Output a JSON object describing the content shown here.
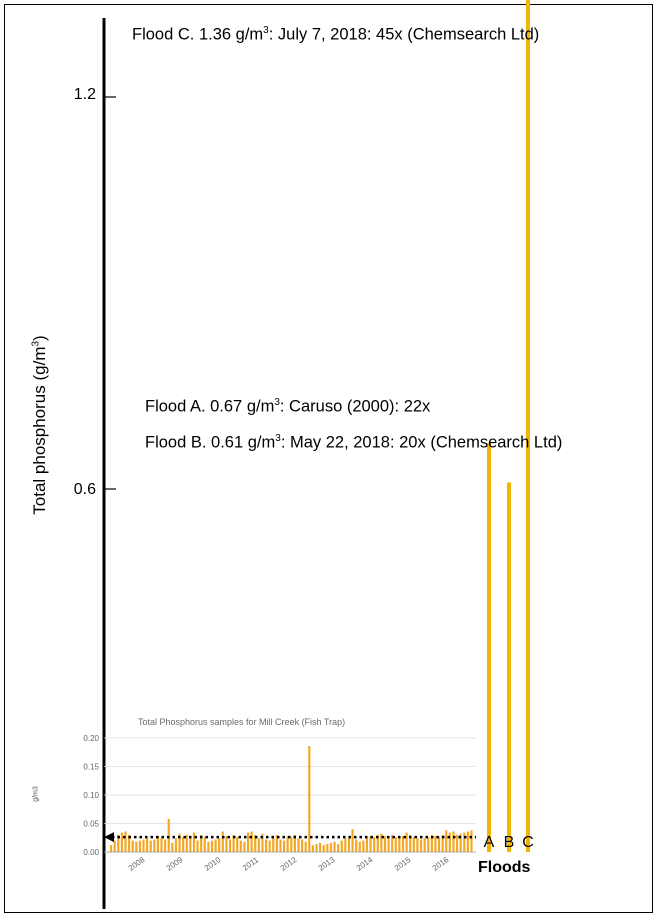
{
  "chart_data": [
    {
      "type": "bar",
      "title": "",
      "ylabel": "Total phosphorus (g/m3)",
      "ylabel_parts": {
        "text": "Total phosphorus (g/m",
        "sup": "3",
        "close": ")"
      },
      "xlabel": "Floods",
      "ylim": [
        0,
        1.36
      ],
      "yticks": [
        {
          "value": 0.6,
          "label": "0.6"
        },
        {
          "value": 1.2,
          "label": "1.2"
        }
      ],
      "categories": [
        "A",
        "B",
        "C"
      ],
      "values": [
        0.67,
        0.61,
        1.36
      ],
      "bar_color": "#F5B400",
      "annotations": [
        {
          "pre": "Flood C. 1.36 g/m",
          "sup": "3",
          "post": ": July 7, 2018: 45x (Chemsearch Ltd)"
        },
        {
          "pre": "Flood A. 0.67 g/m",
          "sup": "3",
          "post": ": Caruso (2000): 22x"
        },
        {
          "pre": "Flood B. 0.61 g/m",
          "sup": "3",
          "post": ": May 22, 2018: 20x (Chemsearch Ltd)"
        }
      ]
    },
    {
      "type": "bar",
      "title": "Total Phosphorus samples for Mill Creek (Fish Trap)",
      "ylabel": "g/m3",
      "ylim": [
        0,
        0.2
      ],
      "yticks": [
        "0.00",
        "0.05",
        "0.10",
        "0.15",
        "0.20"
      ],
      "xticks": [
        "2008",
        "2009",
        "2010",
        "2011",
        "2012",
        "2013",
        "2014",
        "2015",
        "2016"
      ],
      "bar_color": "#F5A623",
      "reference_line": 0.026,
      "values": [
        0.012,
        0.02,
        0.03,
        0.034,
        0.036,
        0.03,
        0.02,
        0.018,
        0.02,
        0.022,
        0.024,
        0.02,
        0.022,
        0.028,
        0.024,
        0.022,
        0.058,
        0.016,
        0.024,
        0.032,
        0.026,
        0.03,
        0.024,
        0.034,
        0.02,
        0.03,
        0.026,
        0.018,
        0.02,
        0.022,
        0.024,
        0.036,
        0.028,
        0.022,
        0.03,
        0.026,
        0.02,
        0.018,
        0.034,
        0.036,
        0.03,
        0.024,
        0.032,
        0.022,
        0.02,
        0.026,
        0.03,
        0.022,
        0.02,
        0.028,
        0.026,
        0.03,
        0.024,
        0.022,
        0.018,
        0.186,
        0.012,
        0.014,
        0.016,
        0.012,
        0.014,
        0.016,
        0.018,
        0.014,
        0.02,
        0.024,
        0.026,
        0.04,
        0.022,
        0.018,
        0.02,
        0.024,
        0.028,
        0.026,
        0.03,
        0.032,
        0.028,
        0.024,
        0.03,
        0.026,
        0.024,
        0.028,
        0.034,
        0.03,
        0.026,
        0.024,
        0.022,
        0.024,
        0.026,
        0.03,
        0.028,
        0.026,
        0.03,
        0.038,
        0.034,
        0.036,
        0.03,
        0.032,
        0.034,
        0.036,
        0.038
      ]
    }
  ]
}
